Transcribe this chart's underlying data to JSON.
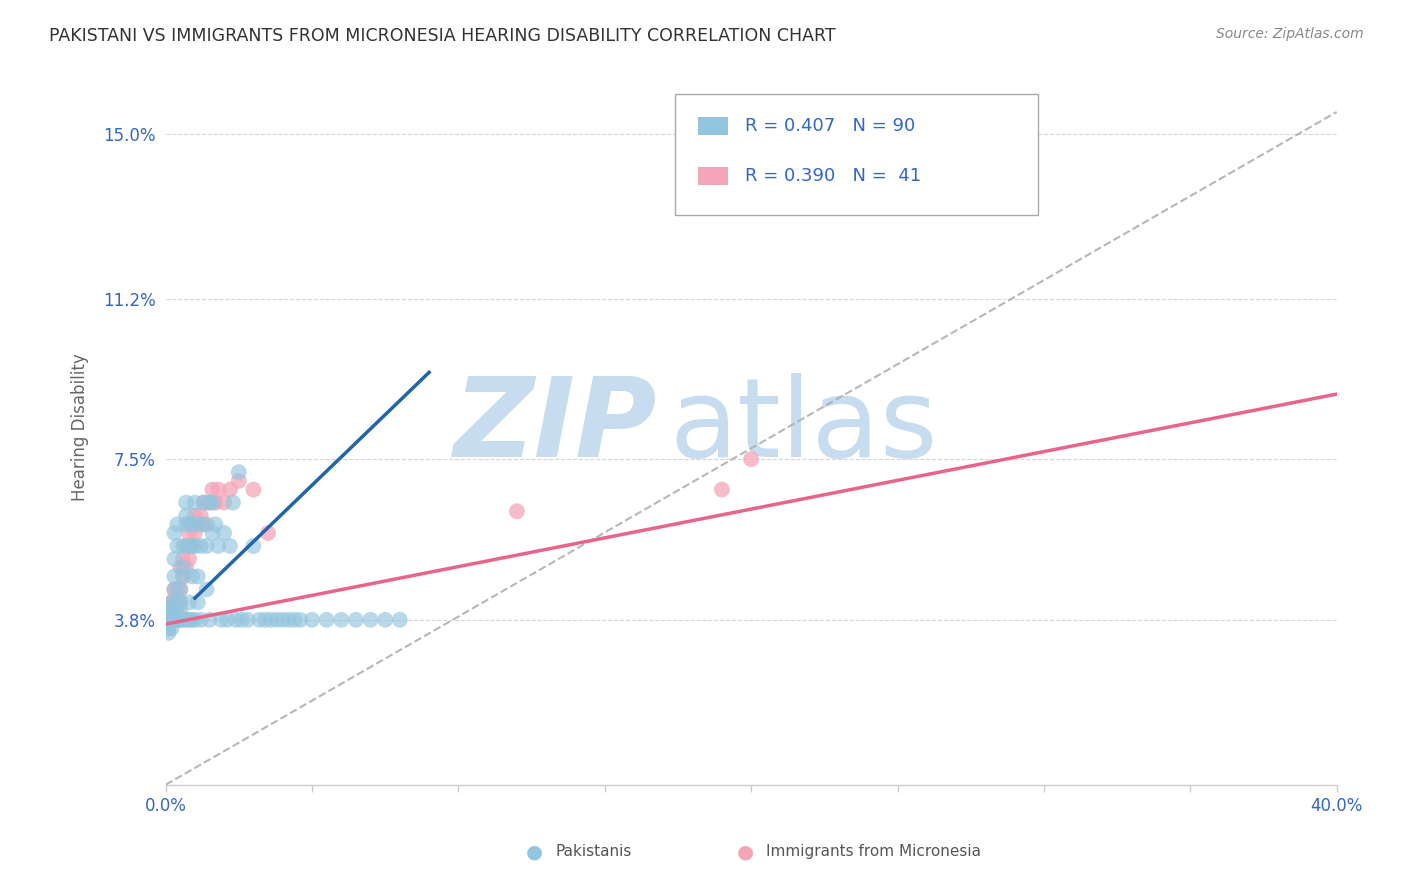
{
  "title": "PAKISTANI VS IMMIGRANTS FROM MICRONESIA HEARING DISABILITY CORRELATION CHART",
  "source": "Source: ZipAtlas.com",
  "ylabel": "Hearing Disability",
  "ytick_labels": [
    "3.8%",
    "7.5%",
    "11.2%",
    "15.0%"
  ],
  "ytick_vals": [
    0.038,
    0.075,
    0.112,
    0.15
  ],
  "xtick_vals": [
    0.0,
    0.05,
    0.1,
    0.15,
    0.2,
    0.25,
    0.3,
    0.35,
    0.4
  ],
  "xlim": [
    0.0,
    0.4
  ],
  "ylim": [
    0.0,
    0.165
  ],
  "legend_line1": "R = 0.407   N = 90",
  "legend_line2": "R = 0.390   N =  41",
  "legend_label1": "Pakistanis",
  "legend_label2": "Immigrants from Micronesia",
  "blue_color": "#92c5de",
  "pink_color": "#f4a6b8",
  "blue_line_color": "#2166ac",
  "pink_line_color": "#e8648a",
  "dashed_line_color": "#b0b0b0",
  "text_color": "#3366cc",
  "title_color": "#333333",
  "watermark_zip_color": "#c8dcf0",
  "watermark_atlas_color": "#c8dcf0",
  "background_color": "#ffffff",
  "grid_color": "#cccccc",
  "pakistanis_x": [
    0.001,
    0.001,
    0.001,
    0.001,
    0.001,
    0.001,
    0.001,
    0.001,
    0.001,
    0.002,
    0.002,
    0.002,
    0.002,
    0.002,
    0.002,
    0.002,
    0.003,
    0.003,
    0.003,
    0.003,
    0.003,
    0.003,
    0.004,
    0.004,
    0.004,
    0.004,
    0.005,
    0.005,
    0.005,
    0.005,
    0.005,
    0.006,
    0.006,
    0.006,
    0.006,
    0.007,
    0.007,
    0.007,
    0.007,
    0.008,
    0.008,
    0.008,
    0.008,
    0.009,
    0.009,
    0.009,
    0.01,
    0.01,
    0.01,
    0.01,
    0.011,
    0.011,
    0.012,
    0.012,
    0.012,
    0.013,
    0.013,
    0.014,
    0.014,
    0.015,
    0.015,
    0.016,
    0.016,
    0.017,
    0.018,
    0.019,
    0.02,
    0.021,
    0.022,
    0.023,
    0.024,
    0.025,
    0.026,
    0.028,
    0.03,
    0.032,
    0.034,
    0.036,
    0.038,
    0.04,
    0.042,
    0.044,
    0.046,
    0.05,
    0.055,
    0.06,
    0.065,
    0.07,
    0.075,
    0.08
  ],
  "pakistanis_y": [
    0.038,
    0.038,
    0.04,
    0.035,
    0.036,
    0.038,
    0.039,
    0.037,
    0.04,
    0.038,
    0.04,
    0.042,
    0.036,
    0.038,
    0.038,
    0.041,
    0.048,
    0.052,
    0.04,
    0.038,
    0.058,
    0.045,
    0.06,
    0.055,
    0.038,
    0.042,
    0.038,
    0.04,
    0.042,
    0.045,
    0.038,
    0.05,
    0.055,
    0.038,
    0.048,
    0.062,
    0.065,
    0.06,
    0.038,
    0.055,
    0.06,
    0.042,
    0.038,
    0.055,
    0.048,
    0.038,
    0.06,
    0.065,
    0.055,
    0.038,
    0.048,
    0.042,
    0.06,
    0.055,
    0.038,
    0.065,
    0.06,
    0.055,
    0.045,
    0.065,
    0.038,
    0.065,
    0.058,
    0.06,
    0.055,
    0.038,
    0.058,
    0.038,
    0.055,
    0.065,
    0.038,
    0.072,
    0.038,
    0.038,
    0.055,
    0.038,
    0.038,
    0.038,
    0.038,
    0.038,
    0.038,
    0.038,
    0.038,
    0.038,
    0.038,
    0.038,
    0.038,
    0.038,
    0.038,
    0.038
  ],
  "micronesia_x": [
    0.001,
    0.001,
    0.001,
    0.002,
    0.002,
    0.002,
    0.003,
    0.003,
    0.003,
    0.004,
    0.004,
    0.004,
    0.005,
    0.005,
    0.005,
    0.006,
    0.006,
    0.007,
    0.007,
    0.008,
    0.008,
    0.009,
    0.009,
    0.01,
    0.01,
    0.011,
    0.012,
    0.013,
    0.014,
    0.015,
    0.016,
    0.017,
    0.018,
    0.02,
    0.022,
    0.025,
    0.03,
    0.035,
    0.12,
    0.19,
    0.2
  ],
  "micronesia_y": [
    0.038,
    0.04,
    0.038,
    0.038,
    0.04,
    0.042,
    0.038,
    0.042,
    0.045,
    0.04,
    0.038,
    0.045,
    0.042,
    0.045,
    0.05,
    0.048,
    0.052,
    0.05,
    0.055,
    0.052,
    0.058,
    0.055,
    0.06,
    0.058,
    0.062,
    0.06,
    0.062,
    0.065,
    0.06,
    0.065,
    0.068,
    0.065,
    0.068,
    0.065,
    0.068,
    0.07,
    0.068,
    0.058,
    0.063,
    0.068,
    0.075
  ],
  "blue_line_x": [
    0.01,
    0.09
  ],
  "blue_line_y": [
    0.043,
    0.095
  ],
  "pink_line_x": [
    0.0,
    0.4
  ],
  "pink_line_y": [
    0.037,
    0.09
  ],
  "diag_line_x": [
    0.0,
    0.4
  ],
  "diag_line_y": [
    0.0,
    0.155
  ]
}
